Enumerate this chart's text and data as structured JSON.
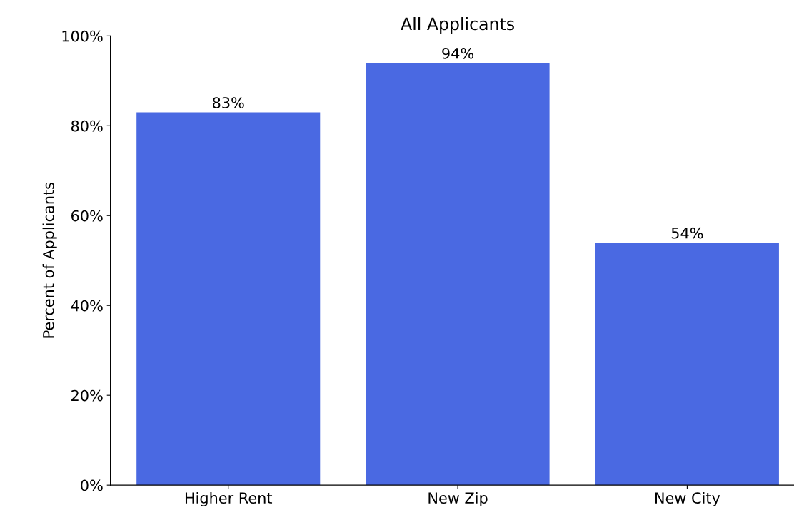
{
  "chart_data": {
    "type": "bar",
    "title": "All Applicants",
    "ylabel": "Percent of Applicants",
    "categories": [
      "Higher Rent",
      "New Zip",
      "New City"
    ],
    "values": [
      83,
      94,
      54
    ],
    "color": "#4a69e2",
    "value_labels": [
      "83%",
      "94%",
      "54%"
    ],
    "ylim": [
      0,
      100
    ],
    "yticks": [
      {
        "value": 0,
        "label": "0%"
      },
      {
        "value": 20,
        "label": "20%"
      },
      {
        "value": 40,
        "label": "40%"
      },
      {
        "value": 60,
        "label": "60%"
      },
      {
        "value": 80,
        "label": "80%"
      },
      {
        "value": 100,
        "label": "100%"
      }
    ],
    "grid": false,
    "legend": false
  }
}
